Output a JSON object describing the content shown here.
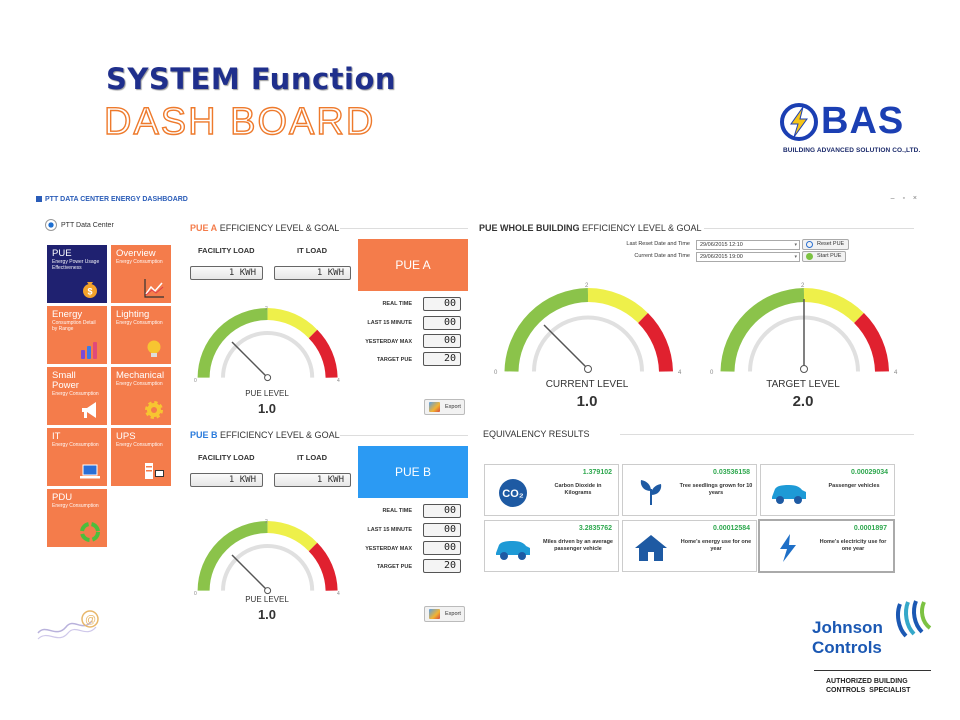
{
  "slide": {
    "title": "SYSTEM Function",
    "subtitle": "DASH BOARD",
    "brand_logo": "BAS",
    "brand_tagline": "BUILDING ADVANCED SOLUTION CO.,LTD.",
    "partner_logo_line1": "Johnson",
    "partner_logo_line2": "Controls",
    "partner_tagline": "AUTHORIZED BUILDING\nCONTROLS  SPECIALIST"
  },
  "app": {
    "window_title": "PTT DATA CENTER ENERGY DASHBOARD",
    "window_controls": "– ▫ ×",
    "site_name": "PTT Data Center",
    "tiles": [
      {
        "title": "PUE",
        "subtitle": "Energy Power Usage Effectiveness",
        "icon": "money-bag-icon",
        "active": true
      },
      {
        "title": "Overview",
        "subtitle": "Energy Consumption",
        "icon": "line-chart-icon",
        "active": false
      },
      {
        "title": "Energy",
        "subtitle": "Consumption Detail by Range",
        "icon": "bar-chart-icon",
        "active": false
      },
      {
        "title": "Lighting",
        "subtitle": "Energy Consumption",
        "icon": "light-bulb-icon",
        "active": false
      },
      {
        "title": "Small Power",
        "subtitle": "Energy Consumption",
        "icon": "megaphone-icon",
        "active": false
      },
      {
        "title": "Mechanical",
        "subtitle": "Energy Consumption",
        "icon": "gear-icon",
        "active": false
      },
      {
        "title": "IT",
        "subtitle": "Energy Consumption",
        "icon": "laptop-icon",
        "active": false
      },
      {
        "title": "UPS",
        "subtitle": "Energy Consumption",
        "icon": "ups-icon",
        "active": false
      },
      {
        "title": "PDU",
        "subtitle": "Energy Consumption",
        "icon": "recycle-icon",
        "active": false
      }
    ],
    "pue_a": {
      "title_highlight": "PUE A",
      "title_rest": "EFFICIENCY LEVEL & GOAL",
      "facility_load_label": "FACILITY LOAD",
      "it_load_label": "IT LOAD",
      "facility_load_value": "1 KWH",
      "it_load_value": "1 KWH",
      "box_label": "PUE A",
      "box_color": "#f47c4b",
      "gauge_min": "0",
      "gauge_mid": "2",
      "gauge_max": "4",
      "gauge_caption": "PUE LEVEL",
      "gauge_value": "1.0",
      "metrics": [
        {
          "label": "REAL TIME",
          "value": "00"
        },
        {
          "label": "LAST 15 MINUTE",
          "value": "00"
        },
        {
          "label": "YESTERDAY MAX",
          "value": "00"
        },
        {
          "label": "TARGET PUE",
          "value": "20"
        }
      ],
      "export_label": "Export"
    },
    "pue_b": {
      "title_highlight": "PUE B",
      "title_rest": "EFFICIENCY LEVEL & GOAL",
      "facility_load_label": "FACILITY LOAD",
      "it_load_label": "IT LOAD",
      "facility_load_value": "1 KWH",
      "it_load_value": "1 KWH",
      "box_label": "PUE B",
      "box_color": "#2b9af3",
      "gauge_min": "0",
      "gauge_mid": "2",
      "gauge_max": "4",
      "gauge_caption": "PUE LEVEL",
      "gauge_value": "1.0",
      "metrics": [
        {
          "label": "REAL TIME",
          "value": "00"
        },
        {
          "label": "LAST 15 MINUTE",
          "value": "00"
        },
        {
          "label": "YESTERDAY MAX",
          "value": "00"
        },
        {
          "label": "TARGET PUE",
          "value": "20"
        }
      ],
      "export_label": "Export"
    },
    "whole_building": {
      "title_highlight": "PUE WHOLE BUILDING",
      "title_rest": "EFFICIENCY LEVEL & GOAL",
      "last_reset_label": "Last Reset Date and Time",
      "last_reset_value": "29/06/2015 12:10",
      "current_date_label": "Current Date and Time",
      "current_date_value": "29/06/2015 19:00",
      "reset_button": "Reset PUE",
      "start_button": "Start PUE",
      "gauge_min": "0",
      "gauge_mid": "2",
      "gauge_max": "4",
      "current_caption": "CURRENT LEVEL",
      "current_value": "1.0",
      "target_caption": "TARGET LEVEL",
      "target_value": "2.0"
    },
    "equivalency": {
      "title": "EQUIVALENCY RESULTS",
      "cards": [
        {
          "value": "1.379102",
          "description": "Carbon Dioxide in Kilograms",
          "icon": "co2-icon"
        },
        {
          "value": "0.03536158",
          "description": "Tree seedlings grown for 10 years",
          "icon": "tree-seedling-icon"
        },
        {
          "value": "0.00029034",
          "description": "Passenger vehicles",
          "icon": "car-icon"
        },
        {
          "value": "3.2835762",
          "description": "Miles driven by an average passenger vehicle",
          "icon": "car-icon"
        },
        {
          "value": "0.00012584",
          "description": "Home's energy use for one year",
          "icon": "house-icon"
        },
        {
          "value": "0.0001897",
          "description": "Home's electricity use for one year",
          "icon": "lightning-icon"
        }
      ]
    }
  }
}
